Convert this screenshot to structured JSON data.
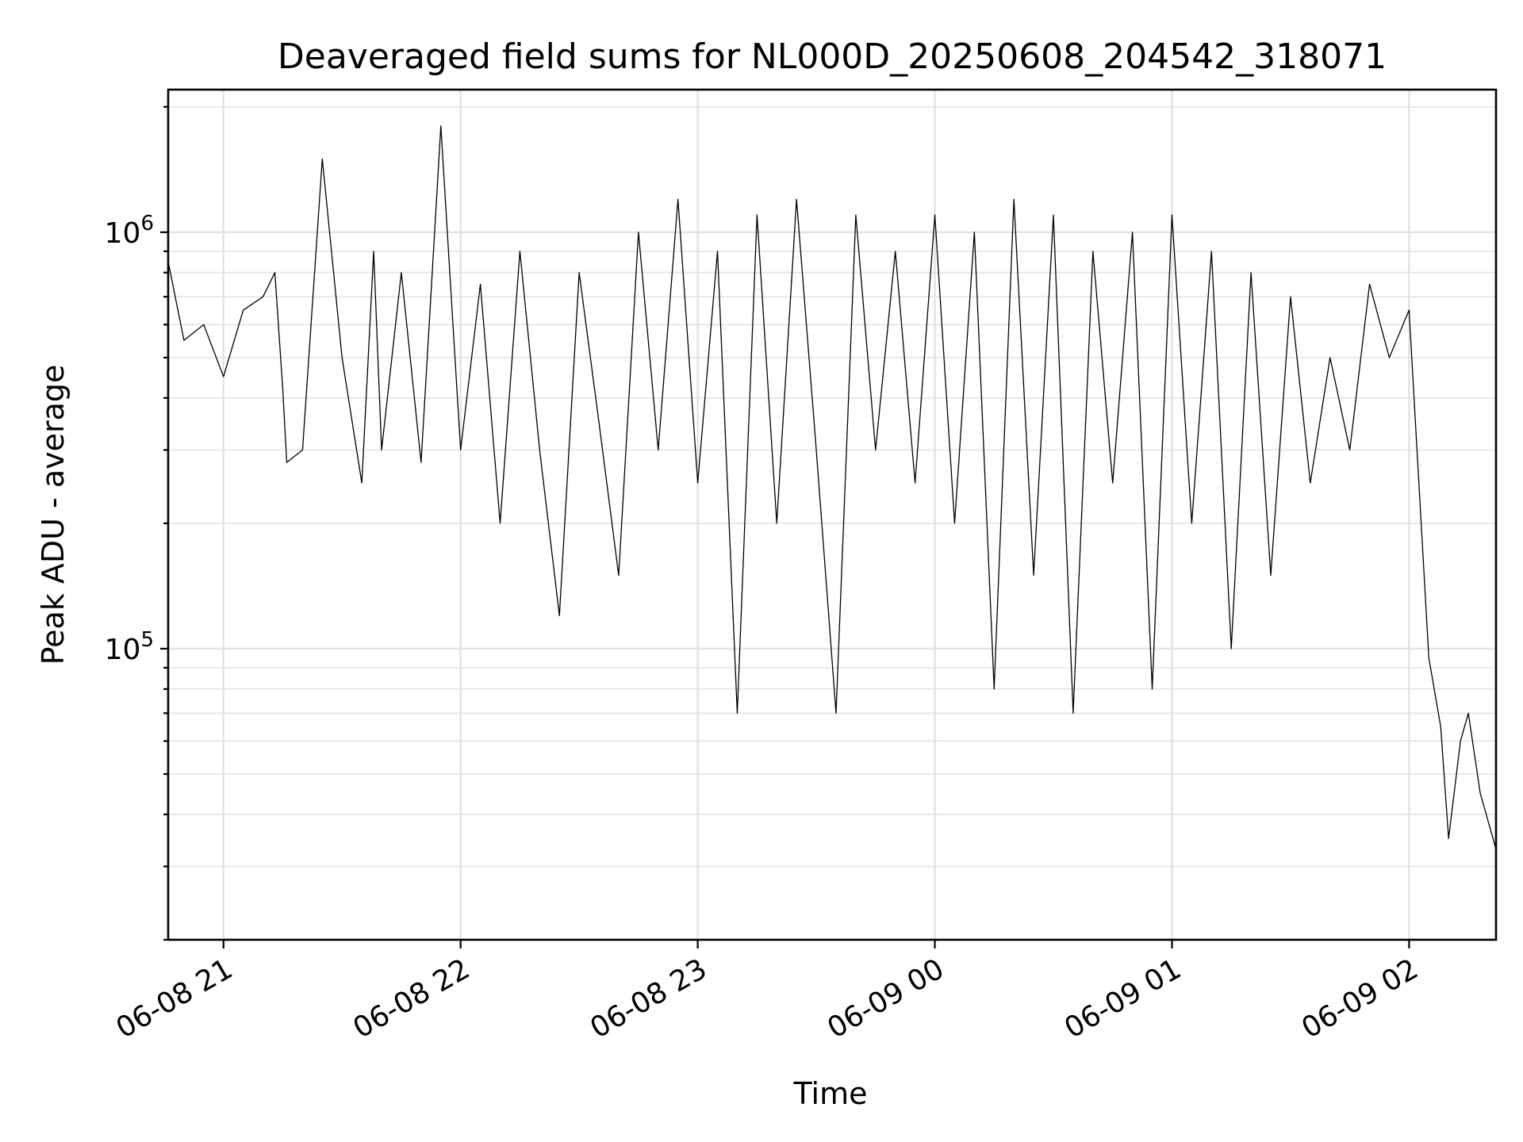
{
  "chart_data": {
    "type": "line",
    "title": "Deaveraged field sums for NL000D_20250608_204542_318071",
    "xlabel": "Time",
    "ylabel": "Peak ADU - average",
    "xlim": [
      "2025-06-08 20:46",
      "2025-06-09 02:22"
    ],
    "ylim": [
      20000,
      2200000
    ],
    "yscale": "log",
    "grid": true,
    "legend": "none",
    "line_color": "#000000",
    "x_ticks": [
      {
        "t": "2025-06-08 21:00",
        "label": "06-08 21"
      },
      {
        "t": "2025-06-08 22:00",
        "label": "06-08 22"
      },
      {
        "t": "2025-06-08 23:00",
        "label": "06-08 23"
      },
      {
        "t": "2025-06-09 00:00",
        "label": "06-09 00"
      },
      {
        "t": "2025-06-09 01:00",
        "label": "06-09 01"
      },
      {
        "t": "2025-06-09 02:00",
        "label": "06-09 02"
      }
    ],
    "y_ticks": [
      {
        "value": 100000,
        "base": "10",
        "exp": "5"
      },
      {
        "value": 1000000,
        "base": "10",
        "exp": "6"
      }
    ],
    "series": [
      {
        "x": [
          "2025-06-08 20:46",
          "2025-06-08 20:50",
          "2025-06-08 20:55",
          "2025-06-08 21:00",
          "2025-06-08 21:05",
          "2025-06-08 21:10",
          "2025-06-08 21:13",
          "2025-06-08 21:15",
          "2025-06-08 21:16",
          "2025-06-08 21:20",
          "2025-06-08 21:25",
          "2025-06-08 21:30",
          "2025-06-08 21:35",
          "2025-06-08 21:38",
          "2025-06-08 21:40",
          "2025-06-08 21:45",
          "2025-06-08 21:50",
          "2025-06-08 21:55",
          "2025-06-08 22:00",
          "2025-06-08 22:05",
          "2025-06-08 22:10",
          "2025-06-08 22:15",
          "2025-06-08 22:20",
          "2025-06-08 22:25",
          "2025-06-08 22:30",
          "2025-06-08 22:35",
          "2025-06-08 22:40",
          "2025-06-08 22:45",
          "2025-06-08 22:50",
          "2025-06-08 22:55",
          "2025-06-08 23:00",
          "2025-06-08 23:05",
          "2025-06-08 23:10",
          "2025-06-08 23:15",
          "2025-06-08 23:20",
          "2025-06-08 23:25",
          "2025-06-08 23:30",
          "2025-06-08 23:35",
          "2025-06-08 23:40",
          "2025-06-08 23:45",
          "2025-06-08 23:50",
          "2025-06-08 23:55",
          "2025-06-09 00:00",
          "2025-06-09 00:05",
          "2025-06-09 00:10",
          "2025-06-09 00:15",
          "2025-06-09 00:20",
          "2025-06-09 00:25",
          "2025-06-09 00:30",
          "2025-06-09 00:35",
          "2025-06-09 00:40",
          "2025-06-09 00:45",
          "2025-06-09 00:50",
          "2025-06-09 00:55",
          "2025-06-09 01:00",
          "2025-06-09 01:05",
          "2025-06-09 01:10",
          "2025-06-09 01:15",
          "2025-06-09 01:20",
          "2025-06-09 01:25",
          "2025-06-09 01:30",
          "2025-06-09 01:35",
          "2025-06-09 01:40",
          "2025-06-09 01:45",
          "2025-06-09 01:50",
          "2025-06-09 01:55",
          "2025-06-09 02:00",
          "2025-06-09 02:02",
          "2025-06-09 02:05",
          "2025-06-09 02:08",
          "2025-06-09 02:10",
          "2025-06-09 02:13",
          "2025-06-09 02:15",
          "2025-06-09 02:18",
          "2025-06-09 02:22"
        ],
        "y": [
          850000,
          550000,
          600000,
          450000,
          650000,
          700000,
          800000,
          420000,
          280000,
          300000,
          1500000,
          500000,
          250000,
          900000,
          300000,
          800000,
          280000,
          1800000,
          300000,
          750000,
          200000,
          900000,
          300000,
          120000,
          800000,
          350000,
          150000,
          1000000,
          300000,
          1200000,
          250000,
          900000,
          70000,
          1100000,
          200000,
          1200000,
          300000,
          70000,
          1100000,
          300000,
          900000,
          250000,
          1100000,
          200000,
          1000000,
          80000,
          1200000,
          150000,
          1100000,
          70000,
          900000,
          250000,
          1000000,
          80000,
          1100000,
          200000,
          900000,
          100000,
          800000,
          150000,
          700000,
          250000,
          500000,
          300000,
          750000,
          500000,
          650000,
          300000,
          95000,
          65000,
          35000,
          60000,
          70000,
          45000,
          33000
        ]
      }
    ],
    "note_trace": "dense trace with many rapid spikes; values listed are a representative sampling"
  }
}
